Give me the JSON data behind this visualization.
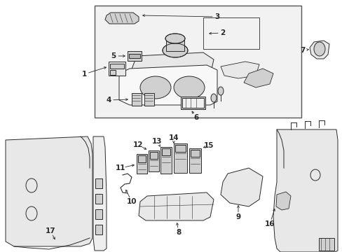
{
  "bg_color": "#ffffff",
  "line_color": "#2a2a2a",
  "fill_light": "#e8e8e8",
  "fill_mid": "#d0d0d0",
  "fill_dark": "#b8b8b8",
  "box_fill": "#f0f0f0",
  "fig_width": 4.89,
  "fig_height": 3.6,
  "dpi": 100
}
